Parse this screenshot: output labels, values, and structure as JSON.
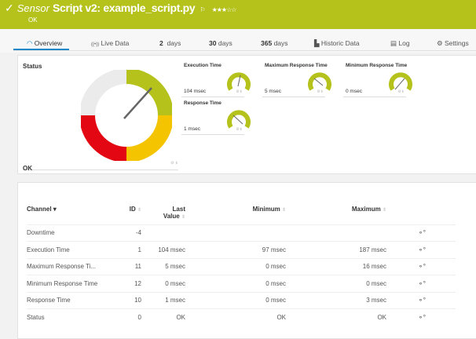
{
  "header": {
    "check_icon": "checkmark",
    "sensor_label": "Sensor",
    "title": "Script v2: example_script.py",
    "flag_icon": "flag",
    "priority_stars": 3,
    "priority_text": "★★★☆☆",
    "status": "OK",
    "color": "#b5c21b"
  },
  "tabs": [
    {
      "label": "Overview",
      "icon": "gauge-icon"
    },
    {
      "label": "Live Data",
      "icon": "live-icon"
    },
    {
      "num": "2",
      "label": "days"
    },
    {
      "num": "30",
      "label": "days"
    },
    {
      "num": "365",
      "label": "days"
    },
    {
      "label": "Historic Data",
      "icon": "chart-icon"
    },
    {
      "label": "Log",
      "icon": "log-icon"
    },
    {
      "label": "Settings",
      "icon": "gear-icon"
    }
  ],
  "status": {
    "title": "Status",
    "value": "OK"
  },
  "gauges": [
    {
      "label": "Execution Time",
      "value": "104 msec"
    },
    {
      "label": "Maximum Response Time",
      "value": "5 msec"
    },
    {
      "label": "Minimum Response Time",
      "value": "0 msec"
    },
    {
      "label": "Response Time",
      "value": "1 msec"
    }
  ],
  "table": {
    "headers": {
      "channel": "Channel ▾",
      "id": "ID",
      "last1": "Last",
      "last2": "Value",
      "minimum": "Minimum",
      "maximum": "Maximum",
      "sort": "⇕"
    },
    "rows": [
      {
        "channel": "Downtime",
        "id": "-4",
        "last": "",
        "min": "",
        "max": ""
      },
      {
        "channel": "Execution Time",
        "id": "1",
        "last": "104 msec",
        "min": "97 msec",
        "max": "187 msec"
      },
      {
        "channel": "Maximum Response Ti...",
        "id": "11",
        "last": "5 msec",
        "min": "0 msec",
        "max": "16 msec"
      },
      {
        "channel": "Minimum Response Time",
        "id": "12",
        "last": "0 msec",
        "min": "0 msec",
        "max": "0 msec"
      },
      {
        "channel": "Response Time",
        "id": "10",
        "last": "1 msec",
        "min": "0 msec",
        "max": "3 msec"
      },
      {
        "channel": "Status",
        "id": "0",
        "last": "OK",
        "min": "OK",
        "max": "OK"
      }
    ]
  }
}
